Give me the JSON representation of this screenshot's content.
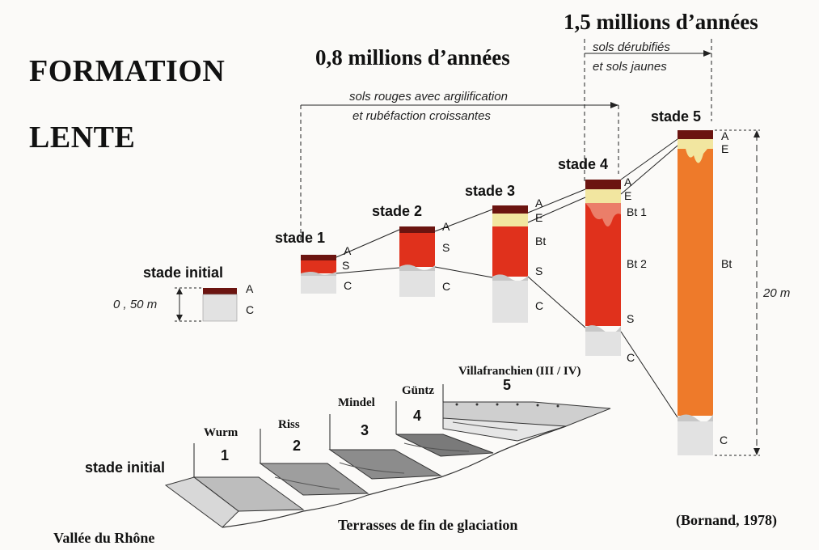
{
  "title_line1": "FORMATION",
  "title_line2": "LENTE",
  "duration_1": "0,8 millions d’années",
  "duration_2": "1,5 millions d’années",
  "span_1_line1": "sols rouges avec argilification",
  "span_1_line2": "et rubéfaction croissantes",
  "span_2_line1": "sols dérubifiés",
  "span_2_line2": "et sols jaunes",
  "stages": {
    "initial": "stade initial",
    "s1": "stade 1",
    "s2": "stade 2",
    "s3": "stade 3",
    "s4": "stade 4",
    "s5": "stade 5"
  },
  "horizons": {
    "initial": [
      "A",
      "C"
    ],
    "s1": [
      "A",
      "S",
      "C"
    ],
    "s2": [
      "A",
      "S",
      "C"
    ],
    "s3": [
      "A",
      "E",
      "Bt",
      "S",
      "C"
    ],
    "s4": [
      "A",
      "E",
      "Bt 1",
      "Bt 2",
      "S",
      "C"
    ],
    "s5": [
      "A",
      "E",
      "Bt",
      "C"
    ]
  },
  "scale_small": "0 , 50 m",
  "scale_large": "20 m",
  "terraces": {
    "t1_name": "Wurm",
    "t1_num": "1",
    "t2_name": "Riss",
    "t2_num": "2",
    "t3_name": "Mindel",
    "t3_num": "3",
    "t4_name": "Güntz",
    "t4_num": "4",
    "t5_name": "Villafranchien (III / IV)",
    "t5_num": "5"
  },
  "stade_initial_bottom": "stade initial",
  "caption_terraces": "Terrasses de fin de glaciation",
  "caption_valley": "Vallée du Rhône",
  "citation": "(Bornand, 1978)",
  "colors": {
    "dark_red": "#6b1410",
    "red": "#e0311c",
    "orange": "#ee7a2a",
    "pale_yellow": "#f2e6a0",
    "grey": "#dcdcdc"
  }
}
